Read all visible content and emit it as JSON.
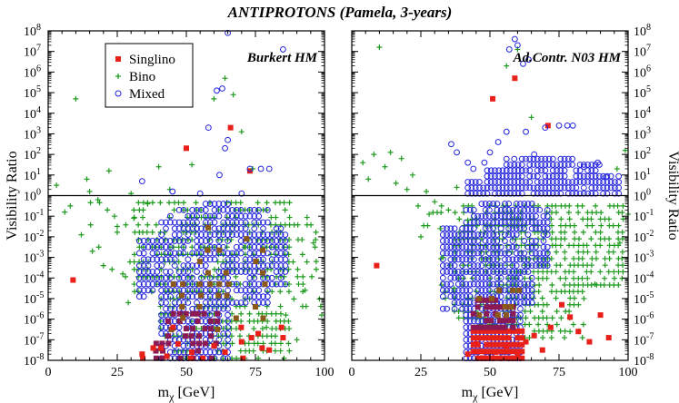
{
  "title": "ANTIPROTONS (Pamela, 3-years)",
  "colors": {
    "singlino": "#e8201a",
    "bino": "#1f9b1f",
    "mixed": "#2222dd",
    "overlap_dark": "#8b1a55",
    "overlap_brown": "#8b5a1a",
    "line": "#000000"
  },
  "chart_data": [
    {
      "type": "scatter",
      "panel": "left",
      "annotation": "Burkert HM",
      "xlabel": "m_χ [GeV]",
      "xlabel_main": "m",
      "xlabel_sub": "χ",
      "xlabel_unit": " [GeV]",
      "ylabel": "Visibility Ratio",
      "xlim": [
        0,
        100
      ],
      "ylim_log10": [
        -8,
        8
      ],
      "x_ticks": [
        0,
        25,
        50,
        75,
        100
      ],
      "y_ticks_exp": [
        -8,
        -7,
        -6,
        -5,
        -4,
        -3,
        -2,
        -1,
        0,
        1,
        2,
        3,
        4,
        5,
        6,
        7,
        8
      ],
      "reference_line": 1,
      "legend": {
        "position": "top-left",
        "entries": [
          {
            "name": "Singlino",
            "marker": "square"
          },
          {
            "name": "Bino",
            "marker": "plus"
          },
          {
            "name": "Mixed",
            "marker": "circle"
          }
        ]
      },
      "series": [
        {
          "name": "Singlino",
          "points": [
            [
              9,
              -4.1
            ],
            [
              50,
              2.3
            ],
            [
              66,
              3.3
            ],
            [
              73,
              1.2
            ],
            [
              34,
              -7.7
            ],
            [
              38,
              -7.4
            ],
            [
              43,
              -7.8
            ],
            [
              47,
              -7.2
            ],
            [
              52,
              -7.6
            ],
            [
              56,
              -7.9
            ],
            [
              60,
              -7.3
            ],
            [
              64,
              -7.6
            ],
            [
              70,
              -7.1
            ],
            [
              76,
              -6.7
            ],
            [
              80,
              -7.5
            ],
            [
              85,
              -6.9
            ]
          ]
        },
        {
          "name": "Bino",
          "points": [
            [
              3,
              0.5
            ],
            [
              10,
              4.7
            ],
            [
              14,
              0.8
            ],
            [
              18,
              -0.2
            ],
            [
              15,
              0.2
            ],
            [
              24,
              -1.0
            ],
            [
              30,
              0.1
            ],
            [
              6,
              -0.8
            ],
            [
              20,
              -3.4
            ],
            [
              29,
              -5.2
            ],
            [
              25,
              -1.5
            ],
            [
              36,
              -0.4
            ],
            [
              44,
              0.3
            ],
            [
              52,
              1.5
            ],
            [
              60,
              4.7
            ],
            [
              64,
              5.7
            ],
            [
              67,
              4.9
            ],
            [
              70,
              3.1
            ],
            [
              71,
              -2.5
            ],
            [
              79,
              -6.4
            ],
            [
              86,
              -5.8
            ],
            [
              90,
              -7.0
            ],
            [
              99,
              -5.8
            ],
            [
              97,
              -3.2
            ],
            [
              96,
              -2.3
            ],
            [
              93,
              -4.6
            ],
            [
              40,
              1.4
            ],
            [
              22,
              1.2
            ],
            [
              33,
              -2.5
            ],
            [
              27,
              -3.8
            ],
            [
              12,
              -1.9
            ],
            [
              8,
              -0.5
            ],
            [
              74,
              1.3
            ],
            [
              16,
              -2.7
            ],
            [
              31,
              -1.1
            ]
          ]
        },
        {
          "name": "Mixed",
          "points": [
            [
              34,
              0.7
            ],
            [
              61,
              5.1
            ],
            [
              63,
              5.2
            ],
            [
              65,
              7.9
            ],
            [
              64,
              2.3
            ],
            [
              65,
              2.7
            ],
            [
              73,
              1.3
            ],
            [
              77,
              1.3
            ],
            [
              80,
              1.3
            ],
            [
              85,
              7.1
            ],
            [
              45,
              0.2
            ],
            [
              55,
              0.1
            ],
            [
              58,
              3.3
            ],
            [
              62,
              1.0
            ],
            [
              70,
              0.1
            ]
          ]
        }
      ]
    },
    {
      "type": "scatter",
      "panel": "right",
      "annotation": "Ad.Contr. N03 HM",
      "xlabel": "m_χ [GeV]",
      "xlabel_main": "m",
      "xlabel_sub": "χ",
      "xlabel_unit": " [GeV]",
      "ylabel": "Visibility Ratio",
      "xlim": [
        0,
        100
      ],
      "ylim_log10": [
        -8,
        8
      ],
      "x_ticks": [
        0,
        25,
        50,
        75,
        100
      ],
      "y_ticks_exp": [
        -8,
        -7,
        -6,
        -5,
        -4,
        -3,
        -2,
        -1,
        0,
        1,
        2,
        3,
        4,
        5,
        6,
        7,
        8
      ],
      "reference_line": 1,
      "series": [
        {
          "name": "Singlino",
          "points": [
            [
              9,
              -3.4
            ],
            [
              51,
              4.7
            ],
            [
              59,
              5.7
            ],
            [
              71,
              3.4
            ],
            [
              48,
              -7.9
            ],
            [
              52,
              -7.6
            ],
            [
              56,
              -7.3
            ],
            [
              60,
              -7.8
            ],
            [
              63,
              -7.1
            ],
            [
              66,
              -6.8
            ],
            [
              69,
              -7.5
            ],
            [
              72,
              -6.4
            ],
            [
              76,
              -5.3
            ],
            [
              79,
              -5.9
            ],
            [
              82,
              -6.6
            ],
            [
              86,
              -7.1
            ],
            [
              90,
              -5.8
            ],
            [
              93,
              -6.9
            ],
            [
              45,
              -7.2
            ],
            [
              42,
              -7.7
            ]
          ]
        },
        {
          "name": "Bino",
          "points": [
            [
              10,
              7.2
            ],
            [
              4,
              1.6
            ],
            [
              12,
              1.4
            ],
            [
              16,
              0.6
            ],
            [
              20,
              0.3
            ],
            [
              24,
              -0.5
            ],
            [
              28,
              -0.9
            ],
            [
              32,
              -1.6
            ],
            [
              8,
              2.0
            ],
            [
              14,
              2.1
            ],
            [
              18,
              1.8
            ],
            [
              22,
              1.0
            ],
            [
              27,
              0.2
            ],
            [
              30,
              -0.3
            ],
            [
              35,
              -0.7
            ],
            [
              38,
              0.4
            ],
            [
              42,
              -1.2
            ],
            [
              56,
              6.3
            ],
            [
              60,
              7.1
            ],
            [
              65,
              3.8
            ],
            [
              79,
              -6.6
            ],
            [
              84,
              -5.0
            ],
            [
              88,
              -4.3
            ],
            [
              93,
              -3.7
            ],
            [
              97,
              -2.3
            ],
            [
              99,
              2.2
            ],
            [
              96,
              1.3
            ],
            [
              100,
              -0.9
            ],
            [
              25,
              -2.0
            ],
            [
              33,
              -3.0
            ],
            [
              37,
              -4.5
            ],
            [
              6,
              0.8
            ]
          ]
        },
        {
          "name": "Mixed",
          "points": [
            [
              36,
              2.5
            ],
            [
              38,
              2.1
            ],
            [
              42,
              1.6
            ],
            [
              44,
              1.3
            ],
            [
              48,
              1.6
            ],
            [
              50,
              2.1
            ],
            [
              53,
              2.6
            ],
            [
              56,
              3.1
            ],
            [
              57,
              7.1
            ],
            [
              59,
              7.6
            ],
            [
              60,
              7.3
            ],
            [
              62,
              6.4
            ],
            [
              64,
              6.6
            ],
            [
              63,
              3.1
            ],
            [
              66,
              2.0
            ],
            [
              70,
              3.3
            ],
            [
              75,
              3.4
            ],
            [
              78,
              3.4
            ],
            [
              80,
              3.4
            ],
            [
              84,
              1.4
            ],
            [
              89,
              1.6
            ],
            [
              92,
              0.9
            ]
          ]
        }
      ]
    }
  ]
}
